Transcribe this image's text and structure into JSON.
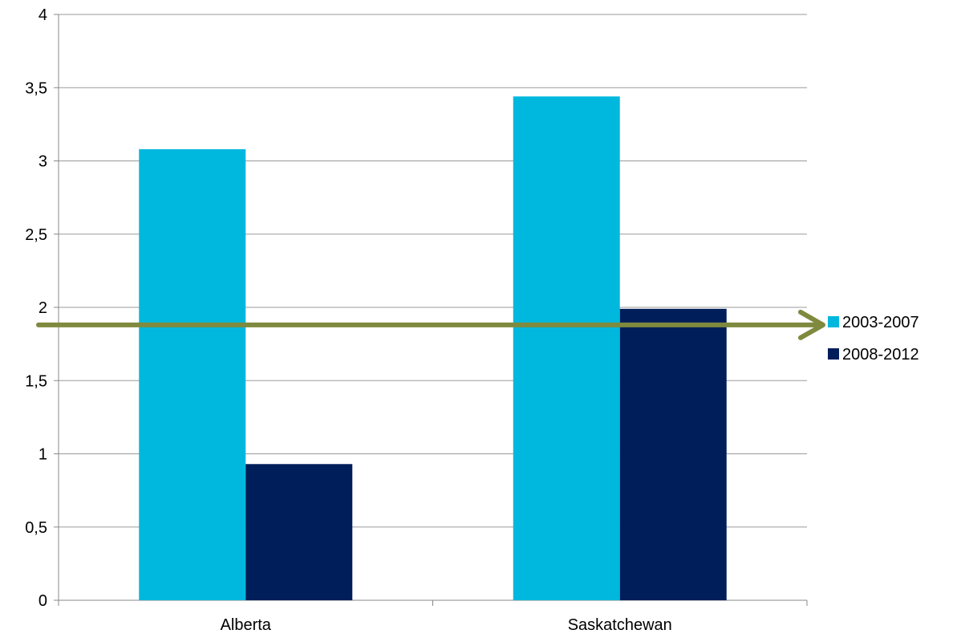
{
  "chart_data": {
    "type": "bar",
    "categories": [
      "Alberta",
      "Saskatchewan"
    ],
    "series": [
      {
        "name": "2003-2007",
        "values": [
          3.08,
          3.44
        ],
        "color": "#00B8DE"
      },
      {
        "name": "2008-2012",
        "values": [
          0.93,
          1.99
        ],
        "color": "#001E5A"
      }
    ],
    "yticks": [
      "0",
      "0,5",
      "1",
      "1,5",
      "2",
      "2,5",
      "3",
      "3,5",
      "4"
    ],
    "ylim": [
      0,
      4
    ],
    "grid": true,
    "legend_position": "right",
    "annotation": {
      "type": "horizontal-arrow",
      "y": 1.88,
      "color": "#7F8A3E"
    }
  }
}
